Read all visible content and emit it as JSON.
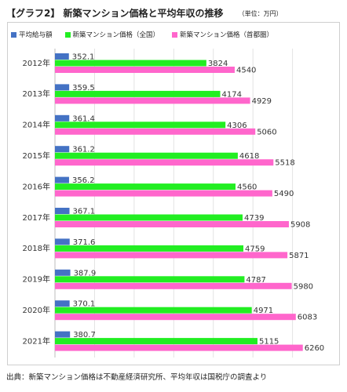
{
  "header": {
    "title": "【グラフ2】 新築マンション価格と平均年収の推移",
    "unit": "（単位：万円）"
  },
  "footer": {
    "source": "出典：新築マンション価格は不動産経済研究所、平均年収は国税庁の調査より"
  },
  "chart_data": {
    "type": "bar",
    "orientation": "horizontal",
    "title": "【グラフ2】 新築マンション価格と平均年収の推移",
    "unit": "（単位：万円）",
    "categories": [
      "2012年",
      "2013年",
      "2014年",
      "2015年",
      "2016年",
      "2017年",
      "2018年",
      "2019年",
      "2020年",
      "2021年"
    ],
    "series": [
      {
        "name": "平均給与額",
        "color": "#4472c4",
        "values": [
          352.1,
          359.5,
          361.4,
          361.2,
          356.2,
          367.1,
          371.6,
          387.9,
          370.1,
          380.7
        ]
      },
      {
        "name": "新築マンション価格（全国）",
        "color": "#22ee22",
        "values": [
          3824,
          4174,
          4306,
          4618,
          4560,
          4739,
          4759,
          4787,
          4971,
          5115
        ]
      },
      {
        "name": "新築マンション価格（首都圏）",
        "color": "#ff66cc",
        "values": [
          4540,
          4929,
          5060,
          5518,
          5490,
          5908,
          5871,
          5980,
          6083,
          6260
        ]
      }
    ],
    "xlim": [
      0,
      6900
    ],
    "legend_position": "top-left",
    "grid": "vertical",
    "data_labels": true
  }
}
